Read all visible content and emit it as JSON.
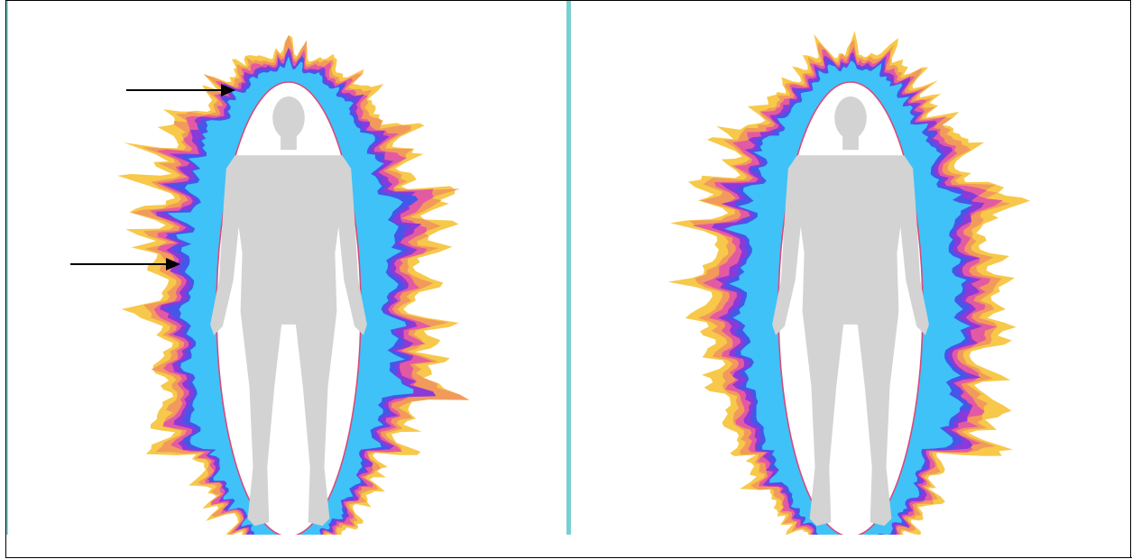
{
  "panels": [
    {
      "id": "left",
      "icon": "aura-body-figure-icon",
      "arrows": 2
    },
    {
      "id": "right",
      "icon": "aura-body-figure-icon",
      "arrows": 0
    }
  ],
  "colors": {
    "outer": "#f7c84a",
    "orange": "#f29a5c",
    "pink": "#e45aa2",
    "violet": "#8a3ad8",
    "blue": "#4656e8",
    "cyan": "#3fc2f7",
    "core": "#ffffff",
    "core_outline": "#d94a7a",
    "silhouette": "#d3d3d3",
    "arrow": "#000000",
    "divider": "#7fd3d6"
  }
}
